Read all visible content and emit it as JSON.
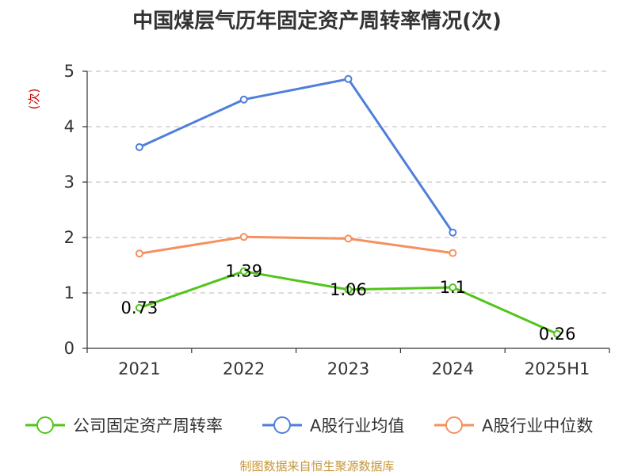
{
  "chart_data": {
    "type": "line",
    "title": "中国煤层气历年固定资产周转率情况(次)",
    "ylabel": "(次)",
    "xlabel": "",
    "categories": [
      "2021",
      "2022",
      "2023",
      "2024",
      "2025H1"
    ],
    "ylim": [
      0,
      5
    ],
    "yticks": [
      0,
      1,
      2,
      3,
      4,
      5
    ],
    "grid": true,
    "legend_position": "bottom",
    "series": [
      {
        "name": "公司固定资产周转率",
        "color": "#52c41a",
        "values": [
          0.73,
          1.39,
          1.06,
          1.1,
          0.26
        ],
        "labels": [
          "0.73",
          "1.39",
          "1.06",
          "1.1",
          "0.26"
        ],
        "show_labels": true
      },
      {
        "name": "A股行业均值",
        "color": "#4f7fdb",
        "values": [
          3.63,
          4.49,
          4.86,
          2.09,
          null
        ],
        "show_labels": false
      },
      {
        "name": "A股行业中位数",
        "color": "#f5905f",
        "values": [
          1.71,
          2.01,
          1.98,
          1.72,
          null
        ],
        "show_labels": false
      }
    ]
  },
  "source": "制图数据来自恒生聚源数据库"
}
